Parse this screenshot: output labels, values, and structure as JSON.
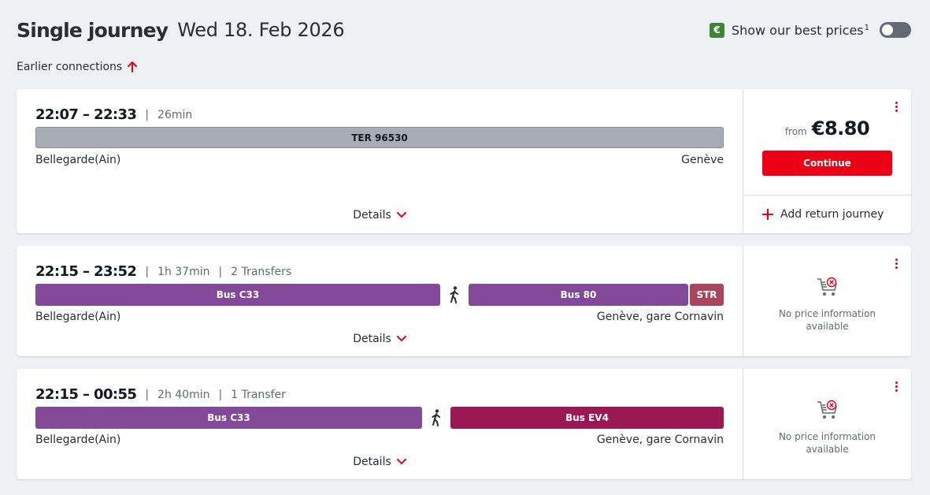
{
  "header": {
    "title": "Single journey",
    "date": "Wed 18. Feb 2026",
    "best_prices_label": "Show our best prices",
    "best_prices_footnote": "1",
    "euro_symbol": "€",
    "toggle_on": false
  },
  "earlier_label": "Earlier connections",
  "details_label": "Details",
  "journeys": [
    {
      "times": "22:07 – 22:33",
      "duration": "26min",
      "transfers": "",
      "legs": [
        {
          "label": "TER 96530",
          "type": "regional"
        }
      ],
      "origin": "Bellegarde(Ain)",
      "destination": "Genève",
      "price_prefix": "from",
      "price": "€8.80",
      "continue_label": "Continue",
      "return_label": "Add return journey"
    },
    {
      "times": "22:15 – 23:52",
      "duration": "1h 37min",
      "transfers": "2 Transfers",
      "legs": [
        {
          "label": "Bus C33",
          "type": "bus"
        },
        {
          "label": "walk",
          "type": "walk"
        },
        {
          "label": "Bus 80",
          "type": "bus"
        },
        {
          "label": "STR",
          "type": "tram"
        }
      ],
      "origin": "Bellegarde(Ain)",
      "destination": "Genève, gare Cornavin",
      "no_price_text": "No price information available"
    },
    {
      "times": "22:15 – 00:55",
      "duration": "2h 40min",
      "transfers": "1 Transfer",
      "legs": [
        {
          "label": "Bus C33",
          "type": "bus"
        },
        {
          "label": "walk",
          "type": "walk"
        },
        {
          "label": "Bus EV4",
          "type": "bus"
        }
      ],
      "origin": "Bellegarde(Ain)",
      "destination": "Genève, gare Cornavin",
      "no_price_text": "No price information available"
    }
  ],
  "colors": {
    "accent_red": "#ec0016",
    "bus_purple": "#814997",
    "bus_ev_magenta": "#9a1955",
    "tram": "#a9455d",
    "regional_grey": "#a8adb5",
    "euro_badge_green": "#408335"
  }
}
